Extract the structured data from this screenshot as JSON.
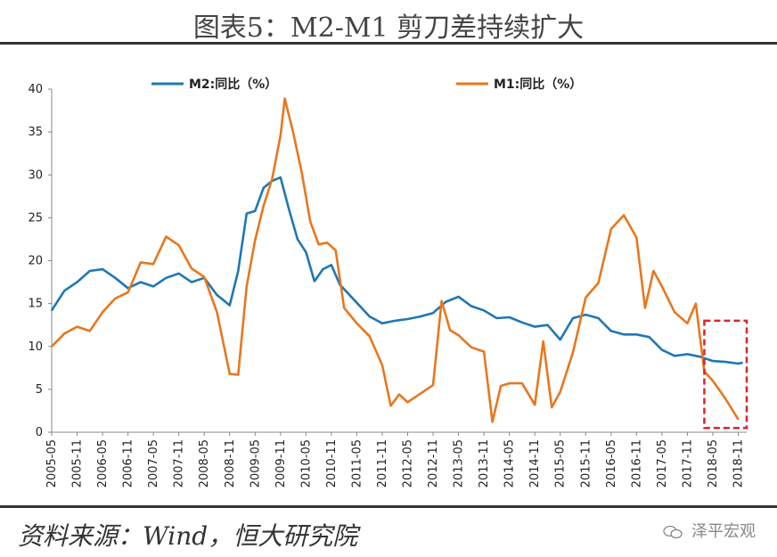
{
  "header": {
    "title": "图表5：M2-M1 剪刀差持续扩大"
  },
  "footer": {
    "source": "资料来源：Wind，恒大研究院",
    "watermark": "泽平宏观"
  },
  "colors": {
    "m2": "#1f77b4",
    "m1": "#e8771e",
    "highlight": "#d62728"
  },
  "chart_data": {
    "type": "line",
    "title": "图表5：M2-M1 剪刀差持续扩大",
    "ylim": [
      0,
      40
    ],
    "yticks": [
      0,
      5,
      10,
      15,
      20,
      25,
      30,
      35,
      40
    ],
    "legend_position": "top",
    "x_tick_labels": [
      "2005-05",
      "2005-11",
      "2006-05",
      "2006-11",
      "2007-05",
      "2007-11",
      "2008-05",
      "2008-11",
      "2009-05",
      "2009-11",
      "2010-05",
      "2010-11",
      "2011-05",
      "2011-11",
      "2012-05",
      "2012-11",
      "2013-05",
      "2013-11",
      "2014-05",
      "2014-11",
      "2015-05",
      "2015-11",
      "2016-05",
      "2016-11",
      "2017-05",
      "2017-11",
      "2018-05",
      "2018-11"
    ],
    "x_range": [
      "2005-05",
      "2019-01"
    ],
    "highlight_box": {
      "x_start": "2018-03",
      "x_end": "2019-01",
      "y_low": 0.5,
      "y_high": 13
    },
    "series": [
      {
        "name": "M2:同比（%）",
        "color": "#1f77b4",
        "points": [
          [
            "2005-05",
            14.2
          ],
          [
            "2005-08",
            16.5
          ],
          [
            "2005-11",
            17.5
          ],
          [
            "2006-02",
            18.8
          ],
          [
            "2006-05",
            19.0
          ],
          [
            "2006-08",
            18.0
          ],
          [
            "2006-11",
            16.8
          ],
          [
            "2007-02",
            17.5
          ],
          [
            "2007-05",
            17.0
          ],
          [
            "2007-08",
            18.0
          ],
          [
            "2007-11",
            18.5
          ],
          [
            "2008-02",
            17.5
          ],
          [
            "2008-05",
            18.0
          ],
          [
            "2008-08",
            16.0
          ],
          [
            "2008-11",
            14.8
          ],
          [
            "2009-01",
            18.8
          ],
          [
            "2009-03",
            25.5
          ],
          [
            "2009-05",
            25.8
          ],
          [
            "2009-07",
            28.5
          ],
          [
            "2009-09",
            29.3
          ],
          [
            "2009-11",
            29.7
          ],
          [
            "2010-01",
            26.0
          ],
          [
            "2010-03",
            22.5
          ],
          [
            "2010-05",
            21.0
          ],
          [
            "2010-07",
            17.6
          ],
          [
            "2010-09",
            19.0
          ],
          [
            "2010-11",
            19.5
          ],
          [
            "2011-01",
            17.2
          ],
          [
            "2011-05",
            15.1
          ],
          [
            "2011-08",
            13.5
          ],
          [
            "2011-11",
            12.7
          ],
          [
            "2012-02",
            13.0
          ],
          [
            "2012-05",
            13.2
          ],
          [
            "2012-08",
            13.5
          ],
          [
            "2012-11",
            13.9
          ],
          [
            "2013-02",
            15.2
          ],
          [
            "2013-05",
            15.8
          ],
          [
            "2013-08",
            14.7
          ],
          [
            "2013-11",
            14.2
          ],
          [
            "2014-02",
            13.3
          ],
          [
            "2014-05",
            13.4
          ],
          [
            "2014-08",
            12.8
          ],
          [
            "2014-11",
            12.3
          ],
          [
            "2015-02",
            12.5
          ],
          [
            "2015-05",
            10.8
          ],
          [
            "2015-08",
            13.3
          ],
          [
            "2015-11",
            13.7
          ],
          [
            "2016-02",
            13.3
          ],
          [
            "2016-05",
            11.8
          ],
          [
            "2016-08",
            11.4
          ],
          [
            "2016-11",
            11.4
          ],
          [
            "2017-02",
            11.1
          ],
          [
            "2017-05",
            9.6
          ],
          [
            "2017-08",
            8.9
          ],
          [
            "2017-11",
            9.1
          ],
          [
            "2018-02",
            8.8
          ],
          [
            "2018-05",
            8.3
          ],
          [
            "2018-08",
            8.2
          ],
          [
            "2018-11",
            8.0
          ],
          [
            "2018-12",
            8.1
          ]
        ]
      },
      {
        "name": "M1:同比（%）",
        "color": "#e8771e",
        "points": [
          [
            "2005-05",
            10.0
          ],
          [
            "2005-08",
            11.5
          ],
          [
            "2005-11",
            12.3
          ],
          [
            "2006-02",
            11.8
          ],
          [
            "2006-05",
            14.0
          ],
          [
            "2006-08",
            15.6
          ],
          [
            "2006-11",
            16.3
          ],
          [
            "2007-02",
            19.8
          ],
          [
            "2007-05",
            19.6
          ],
          [
            "2007-08",
            22.8
          ],
          [
            "2007-11",
            21.8
          ],
          [
            "2008-02",
            19.1
          ],
          [
            "2008-05",
            18.1
          ],
          [
            "2008-08",
            14.0
          ],
          [
            "2008-11",
            6.8
          ],
          [
            "2009-01",
            6.7
          ],
          [
            "2009-03",
            17.0
          ],
          [
            "2009-05",
            22.4
          ],
          [
            "2009-07",
            26.4
          ],
          [
            "2009-09",
            29.5
          ],
          [
            "2009-11",
            34.6
          ],
          [
            "2009-12",
            38.9
          ],
          [
            "2010-02",
            34.9
          ],
          [
            "2010-04",
            30.3
          ],
          [
            "2010-06",
            24.6
          ],
          [
            "2010-08",
            21.9
          ],
          [
            "2010-10",
            22.1
          ],
          [
            "2010-12",
            21.2
          ],
          [
            "2011-02",
            14.5
          ],
          [
            "2011-05",
            12.7
          ],
          [
            "2011-08",
            11.2
          ],
          [
            "2011-11",
            7.8
          ],
          [
            "2012-01",
            3.1
          ],
          [
            "2012-03",
            4.4
          ],
          [
            "2012-05",
            3.5
          ],
          [
            "2012-08",
            4.5
          ],
          [
            "2012-11",
            5.5
          ],
          [
            "2013-01",
            15.3
          ],
          [
            "2013-03",
            11.9
          ],
          [
            "2013-05",
            11.3
          ],
          [
            "2013-08",
            9.9
          ],
          [
            "2013-11",
            9.4
          ],
          [
            "2014-01",
            1.2
          ],
          [
            "2014-03",
            5.4
          ],
          [
            "2014-05",
            5.7
          ],
          [
            "2014-08",
            5.7
          ],
          [
            "2014-11",
            3.2
          ],
          [
            "2015-01",
            10.6
          ],
          [
            "2015-03",
            2.9
          ],
          [
            "2015-05",
            4.7
          ],
          [
            "2015-08",
            9.3
          ],
          [
            "2015-11",
            15.7
          ],
          [
            "2016-02",
            17.4
          ],
          [
            "2016-05",
            23.7
          ],
          [
            "2016-08",
            25.3
          ],
          [
            "2016-11",
            22.7
          ],
          [
            "2017-01",
            14.5
          ],
          [
            "2017-03",
            18.8
          ],
          [
            "2017-05",
            17.0
          ],
          [
            "2017-08",
            14.0
          ],
          [
            "2017-11",
            12.7
          ],
          [
            "2018-01",
            15.0
          ],
          [
            "2018-03",
            7.1
          ],
          [
            "2018-05",
            6.0
          ],
          [
            "2018-08",
            3.9
          ],
          [
            "2018-11",
            1.5
          ]
        ]
      }
    ]
  }
}
